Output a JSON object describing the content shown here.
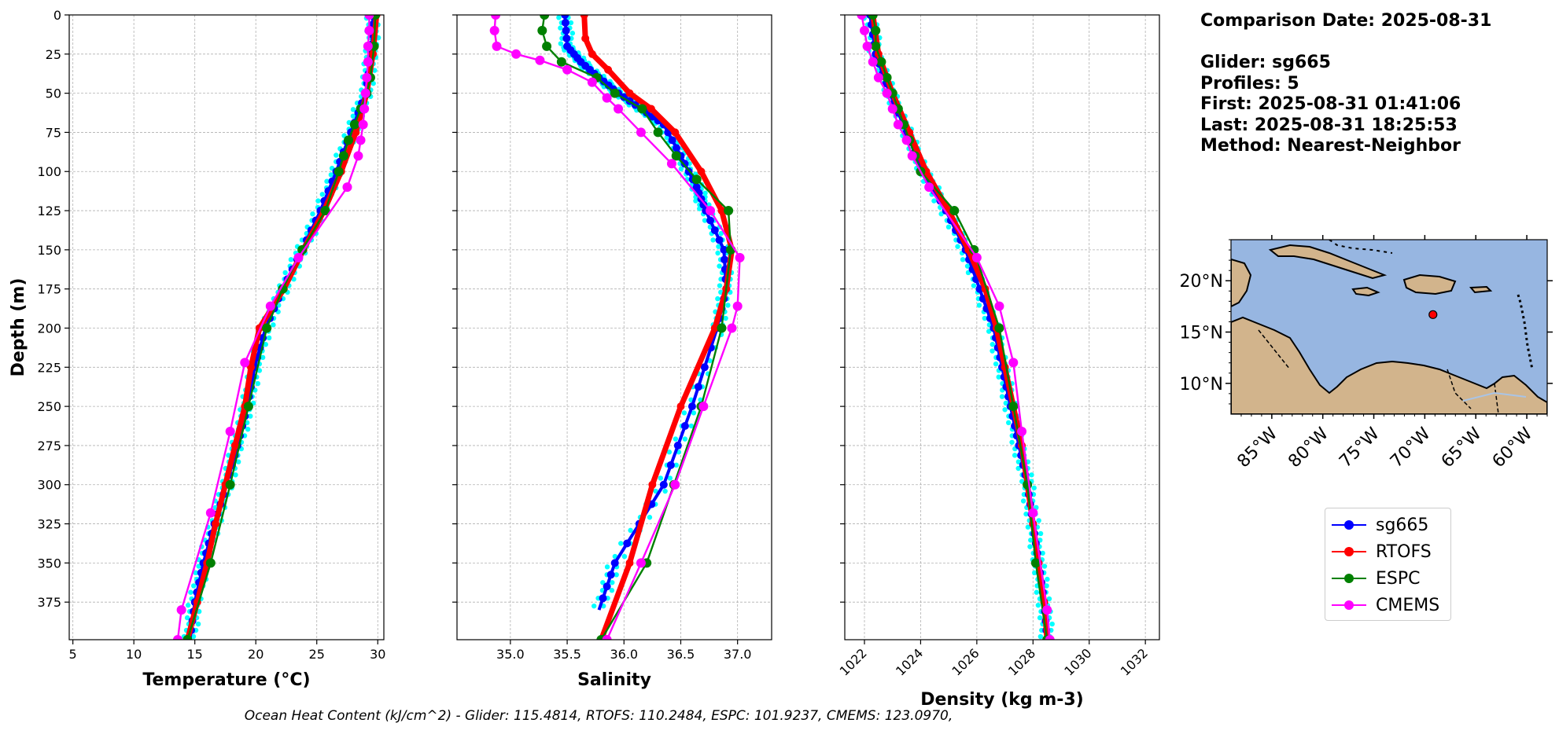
{
  "info": {
    "comparison_date": "Comparison Date: 2025-08-31",
    "glider": "Glider: sg665",
    "profiles": "Profiles: 5",
    "first": "First: 2025-08-31 01:41:06",
    "last": "Last: 2025-08-31 18:25:53",
    "method": "Method: Nearest-Neighbor"
  },
  "footer": "Ocean Heat Content (kJ/cm^2) - Glider: 115.4814,  RTOFS: 110.2484,  ESPC: 101.9237,  CMEMS: 123.0970,",
  "legend": [
    {
      "name": "sg665",
      "color": "#0000ff"
    },
    {
      "name": "RTOFS",
      "color": "#ff0000"
    },
    {
      "name": "ESPC",
      "color": "#008000"
    },
    {
      "name": "CMEMS",
      "color": "#ff00ff"
    }
  ],
  "map": {
    "lat_ticks": [
      "20°N",
      "15°N",
      "10°N"
    ],
    "lon_ticks": [
      "85°W",
      "80°W",
      "75°W",
      "70°W",
      "65°W",
      "60°W"
    ],
    "glider_lon": -69.2,
    "glider_lat": 16.7,
    "ocean_color": "#97b6e1",
    "land_color": "#d2b48c"
  },
  "chart_data": [
    {
      "type": "line",
      "xlabel": "Temperature (°C)",
      "ylabel": "Depth (m)",
      "xlim": [
        4.7,
        30.5
      ],
      "ylim": [
        399,
        0
      ],
      "xticks": [
        5,
        10,
        15,
        20,
        25,
        30
      ],
      "yticks": [
        0,
        25,
        50,
        75,
        100,
        125,
        150,
        175,
        200,
        225,
        250,
        275,
        300,
        325,
        350,
        375
      ],
      "grid": true,
      "series": [
        {
          "name": "sg665",
          "scatter": true,
          "depth": [
            0,
            25,
            50,
            75,
            100,
            125,
            150,
            175,
            200,
            225,
            250,
            275,
            300,
            325,
            350,
            375,
            399
          ],
          "values": [
            29.6,
            29.5,
            29.0,
            27.8,
            26.6,
            25.3,
            23.8,
            22.2,
            20.8,
            19.9,
            19.3,
            18.5,
            17.6,
            16.6,
            15.7,
            15.0,
            14.6
          ]
        },
        {
          "name": "RTOFS",
          "depth": [
            0,
            25,
            50,
            75,
            100,
            125,
            150,
            175,
            200,
            225,
            250,
            275,
            300,
            325,
            350,
            375,
            399
          ],
          "values": [
            29.9,
            29.6,
            29.1,
            28.2,
            27.0,
            25.6,
            23.9,
            22.3,
            20.3,
            19.6,
            19.1,
            18.3,
            17.5,
            16.7,
            16.0,
            15.2,
            14.4
          ]
        },
        {
          "name": "ESPC",
          "depth": [
            0,
            20,
            40,
            50,
            60,
            70,
            80,
            90,
            100,
            125,
            150,
            175,
            200,
            250,
            300,
            350,
            399
          ],
          "values": [
            29.8,
            29.7,
            29.4,
            29.1,
            28.6,
            28.1,
            27.6,
            27.2,
            26.8,
            25.7,
            23.8,
            22.2,
            20.9,
            19.4,
            17.9,
            16.3,
            14.4
          ]
        },
        {
          "name": "CMEMS",
          "depth": [
            0,
            10,
            20,
            30,
            40,
            50,
            60,
            70,
            80,
            90,
            110,
            155,
            186,
            222,
            266,
            318,
            380,
            399
          ],
          "values": [
            29.3,
            29.3,
            29.2,
            29.2,
            29.1,
            29.0,
            28.9,
            28.8,
            28.6,
            28.4,
            27.5,
            23.5,
            21.2,
            19.1,
            17.9,
            16.3,
            13.9,
            13.6
          ]
        }
      ]
    },
    {
      "type": "line",
      "xlabel": "Salinity",
      "ylabel": "",
      "xlim": [
        34.53,
        37.3
      ],
      "ylim": [
        399,
        0
      ],
      "xticks": [
        35.0,
        35.5,
        36.0,
        36.5,
        37.0
      ],
      "grid": true,
      "series": [
        {
          "name": "sg665",
          "scatter": true,
          "depth": [
            0,
            20,
            30,
            40,
            50,
            60,
            70,
            90,
            110,
            125,
            150,
            175,
            200,
            250,
            300,
            350,
            380
          ],
          "values": [
            35.48,
            35.5,
            35.62,
            35.78,
            35.95,
            36.15,
            36.35,
            36.5,
            36.64,
            36.72,
            36.88,
            36.9,
            36.82,
            36.6,
            36.35,
            35.92,
            35.78
          ]
        },
        {
          "name": "RTOFS",
          "depth": [
            0,
            15,
            25,
            35,
            50,
            60,
            75,
            100,
            125,
            150,
            175,
            200,
            250,
            300,
            350,
            399
          ],
          "values": [
            35.65,
            35.66,
            35.72,
            35.86,
            36.05,
            36.24,
            36.45,
            36.68,
            36.86,
            36.95,
            36.9,
            36.8,
            36.5,
            36.25,
            36.05,
            35.8
          ]
        },
        {
          "name": "ESPC",
          "depth": [
            0,
            10,
            20,
            30,
            40,
            50,
            60,
            75,
            90,
            105,
            125,
            150,
            200,
            250,
            300,
            350,
            399
          ],
          "values": [
            35.3,
            35.28,
            35.32,
            35.45,
            35.76,
            35.92,
            36.16,
            36.3,
            36.46,
            36.64,
            36.92,
            36.94,
            36.86,
            36.68,
            36.44,
            36.2,
            35.8
          ]
        },
        {
          "name": "CMEMS",
          "depth": [
            0,
            10,
            20,
            25,
            29,
            35,
            43,
            53,
            60,
            75,
            95,
            125,
            155,
            186,
            200,
            250,
            300,
            350,
            399
          ],
          "values": [
            34.87,
            34.86,
            34.88,
            35.05,
            35.26,
            35.5,
            35.72,
            35.85,
            35.95,
            36.15,
            36.42,
            36.76,
            37.02,
            37.0,
            36.95,
            36.7,
            36.45,
            36.15,
            35.85
          ]
        }
      ]
    },
    {
      "type": "line",
      "xlabel": "Density (kg m-3)",
      "ylabel": "",
      "xlim": [
        1021.3,
        1032.5
      ],
      "ylim": [
        399,
        0
      ],
      "xticks": [
        1022,
        1024,
        1026,
        1028,
        1030,
        1032
      ],
      "grid": true,
      "series": [
        {
          "name": "sg665",
          "scatter": true,
          "depth": [
            0,
            25,
            50,
            75,
            100,
            125,
            150,
            175,
            200,
            225,
            250,
            275,
            300,
            325,
            350,
            375,
            399
          ],
          "values": [
            1022.2,
            1022.4,
            1022.9,
            1023.5,
            1024.1,
            1024.9,
            1025.6,
            1026.1,
            1026.6,
            1026.9,
            1027.2,
            1027.5,
            1027.8,
            1028.0,
            1028.2,
            1028.4,
            1028.5
          ]
        },
        {
          "name": "RTOFS",
          "depth": [
            0,
            25,
            50,
            75,
            100,
            125,
            150,
            175,
            200,
            225,
            250,
            275,
            300,
            325,
            350,
            375,
            399
          ],
          "values": [
            1022.3,
            1022.5,
            1023.0,
            1023.6,
            1024.2,
            1025.0,
            1025.7,
            1026.3,
            1026.7,
            1027.0,
            1027.3,
            1027.6,
            1027.8,
            1028.0,
            1028.2,
            1028.4,
            1028.5
          ]
        },
        {
          "name": "ESPC",
          "depth": [
            0,
            10,
            20,
            30,
            40,
            50,
            60,
            70,
            80,
            90,
            100,
            125,
            150,
            200,
            250,
            300,
            350,
            399
          ],
          "values": [
            1022.3,
            1022.4,
            1022.4,
            1022.6,
            1022.8,
            1023.0,
            1023.2,
            1023.4,
            1023.6,
            1023.8,
            1024.0,
            1025.2,
            1025.9,
            1026.8,
            1027.3,
            1027.8,
            1028.1,
            1028.5
          ]
        },
        {
          "name": "CMEMS",
          "depth": [
            0,
            10,
            20,
            30,
            40,
            50,
            60,
            70,
            80,
            90,
            110,
            155,
            186,
            222,
            266,
            318,
            380,
            399
          ],
          "values": [
            1021.9,
            1022.0,
            1022.1,
            1022.3,
            1022.5,
            1022.8,
            1023.0,
            1023.2,
            1023.5,
            1023.7,
            1024.3,
            1026.0,
            1026.8,
            1027.3,
            1027.6,
            1028.0,
            1028.5,
            1028.6
          ]
        }
      ]
    }
  ]
}
